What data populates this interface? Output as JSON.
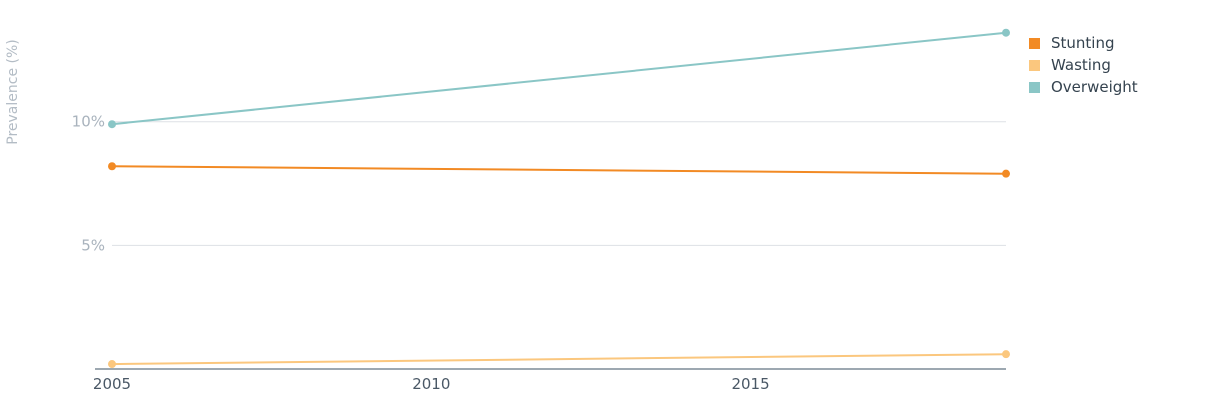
{
  "chart_data": {
    "type": "line",
    "ylabel": "Prevalence (%)",
    "xlabel": "",
    "title": "",
    "xlim": [
      2005,
      2019
    ],
    "ylim": [
      0,
      14.6
    ],
    "x_ticks": [
      {
        "value": 2005,
        "label": "2005"
      },
      {
        "value": 2010,
        "label": "2010"
      },
      {
        "value": 2015,
        "label": "2015"
      }
    ],
    "y_ticks": [
      {
        "value": 5,
        "label": "5%"
      },
      {
        "value": 10,
        "label": "10%"
      }
    ],
    "grid": true,
    "legend_position": "top-right",
    "series": [
      {
        "name": "Stunting",
        "color": "#f28a24",
        "x": [
          2005,
          2019
        ],
        "y": [
          8.2,
          7.9
        ]
      },
      {
        "name": "Wasting",
        "color": "#fbc77e",
        "x": [
          2005,
          2019
        ],
        "y": [
          0.2,
          0.6
        ]
      },
      {
        "name": "Overweight",
        "color": "#8ac6c6",
        "x": [
          2005,
          2019
        ],
        "y": [
          9.9,
          13.6
        ]
      }
    ]
  },
  "colors": {
    "grid": "#dde1e5",
    "axis": "#7d8b97"
  }
}
